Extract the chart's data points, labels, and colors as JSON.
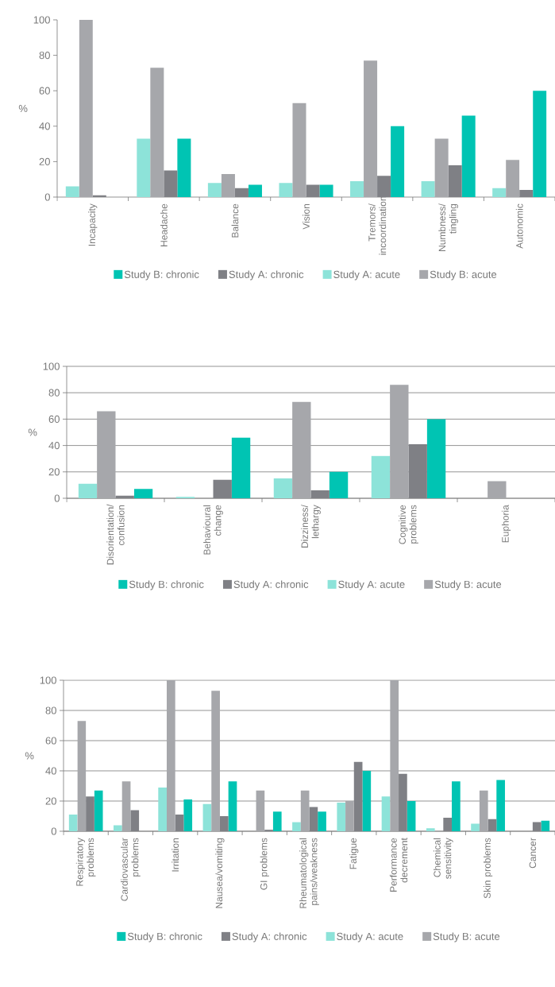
{
  "chart_data": [
    {
      "type": "bar",
      "ylabel": "%",
      "categories": [
        "Incapacity",
        "Headache",
        "Balance",
        "Vision",
        "Tremors/ incoordination",
        "Numbness/ tingling",
        "Autonomic"
      ],
      "ylim": [
        0,
        100
      ],
      "yticks": [
        0,
        20,
        40,
        60,
        80,
        100
      ],
      "grid": false,
      "legend": "bottom",
      "series": [
        {
          "name": "Study B: chronic",
          "color": "#00c4b3",
          "values": [
            null,
            33,
            7,
            7,
            40,
            46,
            60
          ]
        },
        {
          "name": "Study A: chronic",
          "color": "#7f8085",
          "values": [
            1,
            15,
            5,
            7,
            12,
            18,
            4
          ]
        },
        {
          "name": "Study A: acute",
          "color": "#8de3d9",
          "values": [
            6,
            33,
            8,
            8,
            9,
            9,
            5
          ]
        },
        {
          "name": "Study B: acute",
          "color": "#a6a7ab",
          "values": [
            100,
            73,
            13,
            53,
            77,
            33,
            21
          ]
        }
      ]
    },
    {
      "type": "bar",
      "ylabel": "%",
      "categories": [
        "Disorientation/ confusion",
        "Behavioural change",
        "Dizziness/ lethargy",
        "Cognitive problems",
        "Euphoria"
      ],
      "ylim": [
        0,
        100
      ],
      "yticks": [
        0,
        20,
        40,
        60,
        80,
        100
      ],
      "grid": "y",
      "legend": "bottom",
      "series": [
        {
          "name": "Study B: chronic",
          "color": "#00c4b3",
          "values": [
            7,
            46,
            20,
            60,
            null
          ]
        },
        {
          "name": "Study A: chronic",
          "color": "#7f8085",
          "values": [
            2,
            14,
            6,
            41,
            null
          ]
        },
        {
          "name": "Study A: acute",
          "color": "#8de3d9",
          "values": [
            11,
            1,
            15,
            32,
            null
          ]
        },
        {
          "name": "Study B: acute",
          "color": "#a6a7ab",
          "values": [
            66,
            null,
            73,
            86,
            13
          ]
        }
      ]
    },
    {
      "type": "bar",
      "ylabel": "%",
      "categories": [
        "Respiratory problems",
        "Cardiovascular problems",
        "Irritation",
        "Nausea/vomiting",
        "GI problems",
        "Rheumatological pains/weakness",
        "Fatigue",
        "Performance decrement",
        "Chemical sensitivity",
        "Skin problems",
        "Cancer"
      ],
      "ylim": [
        0,
        100
      ],
      "yticks": [
        0,
        20,
        40,
        60,
        80,
        100
      ],
      "grid": "y",
      "legend": "bottom",
      "series": [
        {
          "name": "Study B: chronic",
          "color": "#00c4b3",
          "values": [
            27,
            null,
            21,
            33,
            13,
            13,
            40,
            20,
            33,
            34,
            7
          ]
        },
        {
          "name": "Study A: chronic",
          "color": "#7f8085",
          "values": [
            23,
            14,
            11,
            10,
            1,
            16,
            46,
            38,
            9,
            8,
            6
          ]
        },
        {
          "name": "Study A: acute",
          "color": "#8de3d9",
          "values": [
            11,
            4,
            29,
            18,
            null,
            6,
            19,
            23,
            2,
            5,
            null
          ]
        },
        {
          "name": "Study B: acute",
          "color": "#a6a7ab",
          "values": [
            73,
            33,
            100,
            93,
            27,
            27,
            20,
            100,
            null,
            27,
            null
          ]
        }
      ]
    }
  ]
}
